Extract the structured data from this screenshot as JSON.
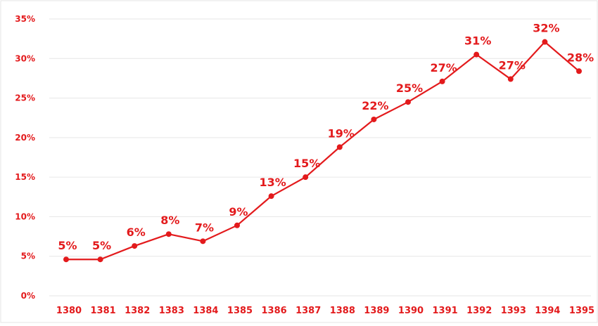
{
  "chart_data": {
    "type": "line",
    "title": "",
    "xlabel": "",
    "ylabel": "",
    "categories": [
      "1380",
      "1381",
      "1382",
      "1383",
      "1384",
      "1385",
      "1386",
      "1387",
      "1388",
      "1389",
      "1390",
      "1391",
      "1392",
      "1393",
      "1394",
      "1395"
    ],
    "series": [
      {
        "values": [
          4.6,
          4.6,
          6.3,
          7.8,
          6.9,
          8.9,
          12.6,
          15.0,
          18.8,
          22.3,
          24.5,
          27.1,
          30.5,
          27.4,
          32.1,
          28.4
        ],
        "data_labels": [
          "5%",
          "5%",
          "6%",
          "8%",
          "7%",
          "9%",
          "13%",
          "15%",
          "19%",
          "22%",
          "25%",
          "27%",
          "31%",
          "27%",
          "32%",
          "28%"
        ]
      }
    ],
    "ylim": [
      0,
      35
    ],
    "y_ticks": [
      0,
      5,
      10,
      15,
      20,
      25,
      30,
      35
    ],
    "y_tick_labels": [
      "0%",
      "5%",
      "10%",
      "15%",
      "20%",
      "25%",
      "30%",
      "35%"
    ],
    "grid": "horizontal",
    "legend": "none",
    "colors": {
      "series": "#e31a1c",
      "labels": "#e31a1c",
      "grid": "#e6e6e6",
      "frame": "#e6e6e6"
    }
  }
}
